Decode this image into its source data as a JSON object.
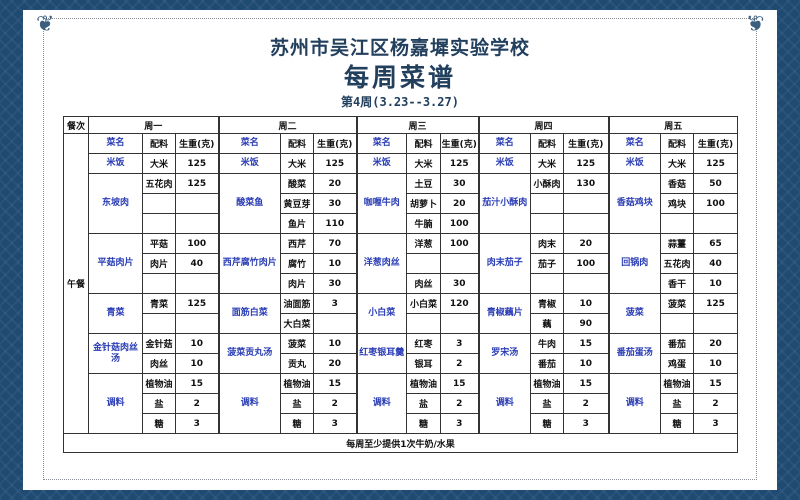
{
  "header": {
    "school": "苏州市吴江区杨嘉墀实验学校",
    "title": "每周菜谱",
    "week": "第4周(3.23--3.27)"
  },
  "table": {
    "meal_col_label": "餐次",
    "meal": "午餐",
    "col_labels": {
      "dish": "菜名",
      "ingredient": "配料",
      "weight": "生重(克)"
    },
    "days": [
      {
        "day": "周一",
        "dishes": [
          {
            "name": "米饭",
            "items": [
              [
                "大米",
                "125"
              ]
            ]
          },
          {
            "name": "东坡肉",
            "items": [
              [
                "五花肉",
                "125"
              ],
              [
                "",
                ""
              ],
              [
                "",
                ""
              ]
            ]
          },
          {
            "name": "平菇肉片",
            "items": [
              [
                "平菇",
                "100"
              ],
              [
                "肉片",
                "40"
              ],
              [
                "",
                ""
              ]
            ]
          },
          {
            "name": "青菜",
            "items": [
              [
                "青菜",
                "125"
              ],
              [
                "",
                ""
              ]
            ]
          },
          {
            "name": "金针菇肉丝汤",
            "items": [
              [
                "金针菇",
                "10"
              ],
              [
                "肉丝",
                "10"
              ]
            ]
          },
          {
            "name": "调料",
            "items": [
              [
                "植物油",
                "15"
              ],
              [
                "盐",
                "2"
              ],
              [
                "糖",
                "3"
              ]
            ]
          }
        ]
      },
      {
        "day": "周二",
        "dishes": [
          {
            "name": "米饭",
            "items": [
              [
                "大米",
                "125"
              ]
            ]
          },
          {
            "name": "酸菜鱼",
            "items": [
              [
                "酸菜",
                "20"
              ],
              [
                "黄豆芽",
                "30"
              ],
              [
                "鱼片",
                "110"
              ]
            ]
          },
          {
            "name": "西芹腐竹肉片",
            "items": [
              [
                "西芹",
                "70"
              ],
              [
                "腐竹",
                "10"
              ],
              [
                "肉片",
                "30"
              ]
            ]
          },
          {
            "name": "面筋白菜",
            "items": [
              [
                "油面筋",
                "3"
              ],
              [
                "大白菜",
                ""
              ]
            ]
          },
          {
            "name": "菠菜贡丸汤",
            "items": [
              [
                "菠菜",
                "10"
              ],
              [
                "贡丸",
                "20"
              ]
            ]
          },
          {
            "name": "调料",
            "items": [
              [
                "植物油",
                "15"
              ],
              [
                "盐",
                "2"
              ],
              [
                "糖",
                "3"
              ]
            ]
          }
        ]
      },
      {
        "day": "周三",
        "dishes": [
          {
            "name": "米饭",
            "items": [
              [
                "大米",
                "125"
              ]
            ]
          },
          {
            "name": "咖喱牛肉",
            "items": [
              [
                "土豆",
                "30"
              ],
              [
                "胡萝卜",
                "20"
              ],
              [
                "牛腩",
                "100"
              ]
            ]
          },
          {
            "name": "洋葱肉丝",
            "items": [
              [
                "洋葱",
                "100"
              ],
              [
                "",
                ""
              ],
              [
                "肉丝",
                "30"
              ]
            ]
          },
          {
            "name": "小白菜",
            "items": [
              [
                "小白菜",
                "120"
              ],
              [
                "",
                ""
              ]
            ]
          },
          {
            "name": "红枣银耳羹",
            "items": [
              [
                "红枣",
                "3"
              ],
              [
                "银耳",
                "2"
              ]
            ]
          },
          {
            "name": "调料",
            "items": [
              [
                "植物油",
                "15"
              ],
              [
                "盐",
                "2"
              ],
              [
                "糖",
                "3"
              ]
            ]
          }
        ]
      },
      {
        "day": "周四",
        "dishes": [
          {
            "name": "米饭",
            "items": [
              [
                "大米",
                "125"
              ]
            ]
          },
          {
            "name": "茄汁小酥肉",
            "items": [
              [
                "小酥肉",
                "130"
              ],
              [
                "",
                ""
              ],
              [
                "",
                ""
              ]
            ]
          },
          {
            "name": "肉末茄子",
            "items": [
              [
                "肉末",
                "20"
              ],
              [
                "茄子",
                "100"
              ],
              [
                "",
                ""
              ]
            ]
          },
          {
            "name": "青椒藕片",
            "items": [
              [
                "青椒",
                "10"
              ],
              [
                "藕",
                "90"
              ]
            ]
          },
          {
            "name": "罗宋汤",
            "items": [
              [
                "牛肉",
                "15"
              ],
              [
                "番茄",
                "10"
              ]
            ]
          },
          {
            "name": "调料",
            "items": [
              [
                "植物油",
                "15"
              ],
              [
                "盐",
                "2"
              ],
              [
                "糖",
                "3"
              ]
            ]
          }
        ]
      },
      {
        "day": "周五",
        "dishes": [
          {
            "name": "米饭",
            "items": [
              [
                "大米",
                "125"
              ]
            ]
          },
          {
            "name": "香菇鸡块",
            "items": [
              [
                "香菇",
                "50"
              ],
              [
                "鸡块",
                "100"
              ],
              [
                "",
                ""
              ]
            ]
          },
          {
            "name": "回锅肉",
            "items": [
              [
                "蒜薹",
                "65"
              ],
              [
                "五花肉",
                "40"
              ],
              [
                "香干",
                "10"
              ]
            ]
          },
          {
            "name": "菠菜",
            "items": [
              [
                "菠菜",
                "125"
              ],
              [
                "",
                ""
              ]
            ]
          },
          {
            "name": "番茄蛋汤",
            "items": [
              [
                "番茄",
                "20"
              ],
              [
                "鸡蛋",
                "10"
              ]
            ]
          },
          {
            "name": "调料",
            "items": [
              [
                "植物油",
                "15"
              ],
              [
                "盐",
                "2"
              ],
              [
                "糖",
                "3"
              ]
            ]
          }
        ]
      }
    ],
    "footer": "每周至少提供1次牛奶/水果"
  },
  "colors": {
    "background": "#1f4a72",
    "title": "#22405e",
    "dish_name": "#2a3db5"
  }
}
